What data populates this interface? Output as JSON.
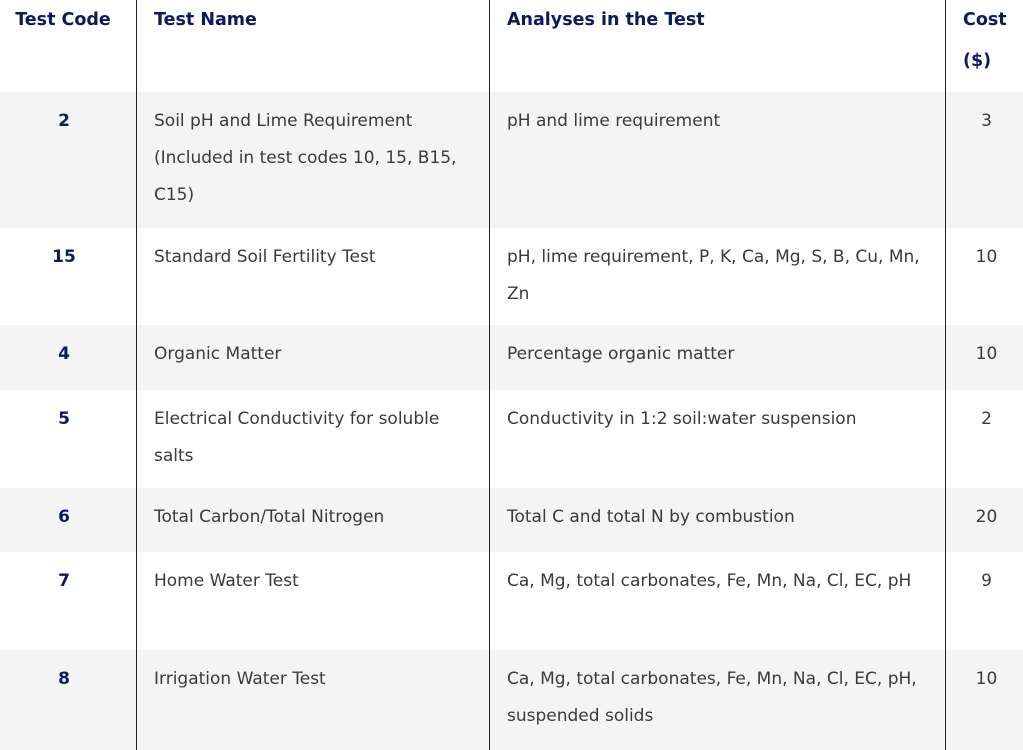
{
  "headers": {
    "code": "Test Code",
    "name": "Test Name",
    "analyses": "Analyses in the Test",
    "cost": "Cost ($)"
  },
  "rows": [
    {
      "code": "2",
      "name": "Soil pH and Lime Requirement (Included in test codes 10, 15, B15, C15)",
      "analyses": "pH and lime requirement",
      "cost": "3"
    },
    {
      "code": "15",
      "name": "Standard Soil Fertility Test",
      "analyses": "pH, lime requirement, P, K, Ca, Mg, S, B, Cu, Mn, Zn",
      "cost": "10"
    },
    {
      "code": "4",
      "name": "Organic Matter",
      "analyses": "Percentage organic matter",
      "cost": "10"
    },
    {
      "code": "5",
      "name": "Electrical Conductivity for soluble salts",
      "analyses": "Conductivity in 1:2 soil:water suspension",
      "cost": "2"
    },
    {
      "code": "6",
      "name": "Total Carbon/Total Nitrogen",
      "analyses": "Total C and total N by combustion",
      "cost": "20"
    },
    {
      "code": "7",
      "name": "Home Water Test",
      "analyses": "Ca, Mg, total carbonates, Fe, Mn, Na, Cl, EC, pH",
      "cost": "9"
    },
    {
      "code": "8",
      "name": "Irrigation Water Test",
      "analyses": "Ca, Mg, total carbonates, Fe, Mn, Na, Cl, EC, pH, suspended solids",
      "cost": "10"
    }
  ],
  "colors": {
    "header_text": "#0d1a5c",
    "stripe": "#f4f4f4",
    "body_text": "#3a3a3a"
  }
}
